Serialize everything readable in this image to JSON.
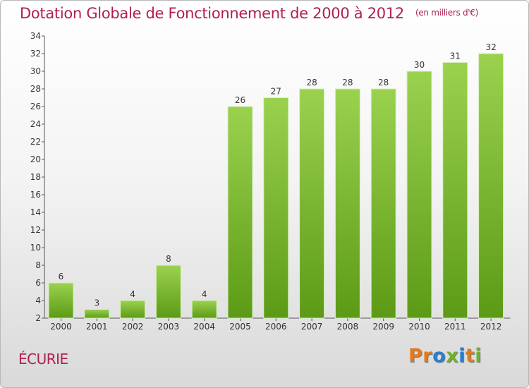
{
  "title": {
    "main": "Dotation Globale de Fonctionnement de 2000 à 2012",
    "unit": "(en milliers d'€)"
  },
  "commune": "ÉCURIE",
  "logo": {
    "text": "Proxiti",
    "letter_colors": [
      "#e07b1f",
      "#e07b1f",
      "#2a7fd0",
      "#6fb22d",
      "#2a7fd0",
      "#e07b1f",
      "#6fb22d"
    ]
  },
  "colors": {
    "title": "#b0204e",
    "bar_top": "#9ad24e",
    "bar_bottom": "#5c9a16"
  },
  "chart_data": {
    "type": "bar",
    "categories": [
      "2000",
      "2001",
      "2002",
      "2003",
      "2004",
      "2005",
      "2006",
      "2007",
      "2008",
      "2009",
      "2010",
      "2011",
      "2012"
    ],
    "values": [
      6,
      3,
      4,
      8,
      4,
      26,
      27,
      28,
      28,
      28,
      30,
      31,
      32
    ],
    "value_labels": [
      "6",
      "3",
      "4",
      "8",
      "4",
      "26",
      "27",
      "28",
      "28",
      "28",
      "30",
      "31",
      "32"
    ],
    "ylim": [
      2,
      34
    ],
    "yticks": [
      "2",
      "4",
      "6",
      "8",
      "10",
      "12",
      "14",
      "16",
      "18",
      "20",
      "22",
      "24",
      "26",
      "28",
      "30",
      "32",
      "34"
    ],
    "grid": false,
    "legend": "none"
  }
}
